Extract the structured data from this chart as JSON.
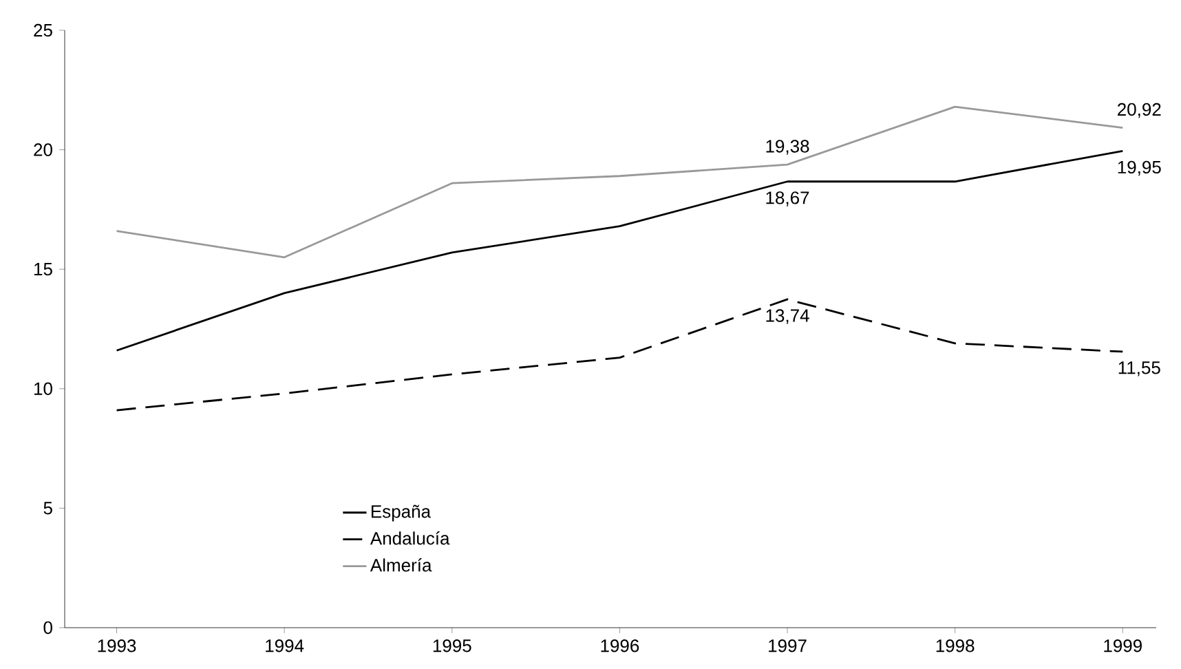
{
  "chart_data": {
    "type": "line",
    "categories": [
      "1993",
      "1994",
      "1995",
      "1996",
      "1997",
      "1998",
      "1999"
    ],
    "ylim": [
      0,
      25
    ],
    "yticks": [
      0,
      5,
      10,
      15,
      20,
      25
    ],
    "legend": "bottom left",
    "marker": "none",
    "series": [
      {
        "name": "España",
        "color": "#000000",
        "line_style": "solid",
        "values": [
          11.6,
          14.0,
          15.7,
          16.8,
          18.67,
          18.67,
          19.95
        ],
        "value_labels": [
          null,
          null,
          null,
          null,
          "18,67",
          null,
          "19,95"
        ]
      },
      {
        "name": "Andalucía",
        "color": "#000000",
        "line_style": "dashed",
        "values": [
          9.1,
          9.8,
          10.6,
          11.3,
          13.74,
          11.9,
          11.55
        ],
        "value_labels": [
          null,
          null,
          null,
          null,
          "13,74",
          null,
          "11,55"
        ]
      },
      {
        "name": "Almería",
        "color": "#999999",
        "line_style": "solid",
        "values": [
          16.6,
          15.5,
          18.6,
          18.9,
          19.38,
          21.8,
          20.92
        ],
        "value_labels": [
          null,
          null,
          null,
          null,
          "19,38",
          null,
          "20,92"
        ]
      }
    ]
  }
}
